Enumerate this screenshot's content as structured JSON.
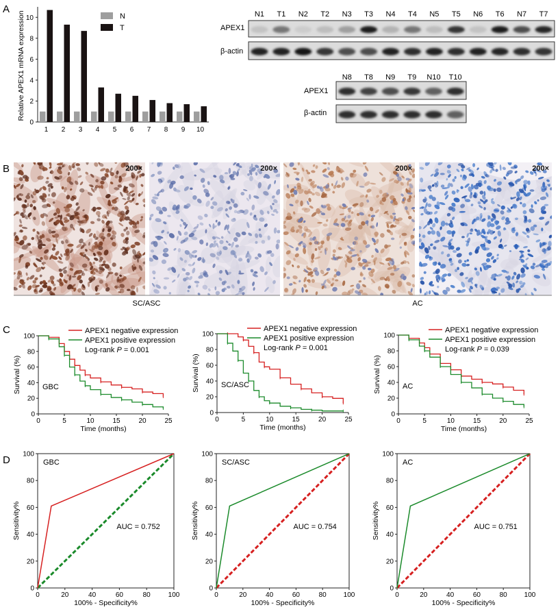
{
  "panel_labels": [
    "A",
    "B",
    "C",
    "D"
  ],
  "panel_a": {
    "chart_data": {
      "type": "bar",
      "categories": [
        "1",
        "2",
        "3",
        "4",
        "5",
        "6",
        "7",
        "8",
        "9",
        "10"
      ],
      "series": [
        {
          "name": "N",
          "values": [
            1,
            1,
            1,
            1,
            1,
            1,
            1,
            1,
            1,
            1
          ]
        },
        {
          "name": "T",
          "values": [
            10.7,
            9.3,
            8.7,
            3.3,
            2.7,
            2.5,
            2.1,
            1.8,
            1.7,
            1.5
          ]
        }
      ],
      "ylabel": "Relative APEX1 mRNA expression",
      "ylim": [
        0,
        11
      ],
      "yticks": [
        0,
        2,
        4,
        6,
        8,
        10
      ],
      "legend": "top-center",
      "colors": {
        "N": "#9e9e9e",
        "T": "#1a1313"
      }
    },
    "blot1": {
      "lanes": [
        "N1",
        "T1",
        "N2",
        "T2",
        "N3",
        "T3",
        "N4",
        "T4",
        "N5",
        "T5",
        "N6",
        "T6",
        "N7",
        "T7"
      ],
      "rows": [
        "APEX1",
        "β-actin"
      ],
      "apex1_intensity": [
        0.12,
        0.5,
        0.08,
        0.15,
        0.3,
        0.92,
        0.2,
        0.5,
        0.15,
        0.82,
        0.12,
        0.92,
        0.7,
        0.88
      ],
      "actin_intensity": [
        0.9,
        0.9,
        0.95,
        0.82,
        0.7,
        0.7,
        0.9,
        0.85,
        0.9,
        0.85,
        0.9,
        0.88,
        0.85,
        0.82
      ]
    },
    "blot2": {
      "lanes": [
        "N8",
        "T8",
        "N9",
        "T9",
        "N10",
        "T10"
      ],
      "rows": [
        "APEX1",
        "β-actin"
      ],
      "apex1_intensity": [
        0.85,
        0.75,
        0.7,
        0.8,
        0.6,
        0.85
      ],
      "actin_intensity": [
        0.85,
        0.85,
        0.85,
        0.85,
        0.85,
        0.6
      ]
    }
  },
  "panel_b": {
    "magnification": "200×",
    "captions": [
      "SC/ASC",
      "AC"
    ]
  },
  "panel_c": {
    "legend": [
      "APEX1 negative expression",
      "APEX1 positive expression"
    ],
    "colors": {
      "negative": "#d62020",
      "positive": "#1a8a2a"
    },
    "chart_data": [
      {
        "type": "line",
        "label": "GBC",
        "logrank_prefix": "Log-rank",
        "logrank_p_symbol": "P",
        "logrank_value": " = 0.001",
        "xlabel": "Time (months)",
        "ylabel": "Survival (%)",
        "xlim": [
          0,
          25
        ],
        "ylim": [
          0,
          100
        ],
        "xticks": [
          0,
          5,
          10,
          15,
          20,
          25
        ],
        "yticks": [
          0,
          20,
          40,
          60,
          80,
          100
        ],
        "series": [
          {
            "name": "APEX1 negative expression",
            "x": [
              0,
              2,
              4,
              5,
              6,
              7,
              8,
              9,
              10,
              12,
              14,
              16,
              18,
              20,
              22,
              24
            ],
            "y": [
              100,
              98,
              90,
              80,
              70,
              62,
              56,
              50,
              46,
              41,
              37,
              34,
              32,
              28,
              26,
              22
            ]
          },
          {
            "name": "APEX1 positive expression",
            "x": [
              0,
              2,
              4,
              5,
              6,
              7,
              8,
              9,
              10,
              12,
              14,
              16,
              18,
              20,
              22,
              24
            ],
            "y": [
              100,
              96,
              86,
              75,
              60,
              50,
              42,
              36,
              31,
              25,
              21,
              18,
              15,
              12,
              9,
              7
            ]
          }
        ]
      },
      {
        "type": "line",
        "label": "SC/ASC",
        "logrank_prefix": "Log-rank",
        "logrank_p_symbol": "P",
        "logrank_value": " = 0.001",
        "xlabel": "Time (months)",
        "ylabel": "Survival (%)",
        "xlim": [
          0,
          25
        ],
        "ylim": [
          0,
          100
        ],
        "xticks": [
          0,
          5,
          10,
          15,
          20,
          25
        ],
        "yticks": [
          0,
          20,
          40,
          60,
          80,
          100
        ],
        "series": [
          {
            "name": "APEX1 negative expression",
            "x": [
              0,
              2,
              4,
              5,
              6,
              7,
              8,
              9,
              10,
              12,
              14,
              16,
              18,
              20,
              22,
              24
            ],
            "y": [
              100,
              100,
              96,
              92,
              84,
              76,
              64,
              58,
              55,
              44,
              36,
              30,
              25,
              20,
              18,
              12
            ]
          },
          {
            "name": "APEX1 positive expression",
            "x": [
              0,
              2,
              3,
              4,
              5,
              6,
              7,
              8,
              9,
              10,
              12,
              14,
              16,
              18,
              20,
              24
            ],
            "y": [
              100,
              88,
              78,
              66,
              50,
              40,
              28,
              20,
              15,
              12,
              8,
              6,
              4,
              3,
              2,
              2
            ]
          }
        ]
      },
      {
        "type": "line",
        "label": "AC",
        "logrank_prefix": "Log-rank",
        "logrank_p_symbol": "P",
        "logrank_value": " = 0.039",
        "xlabel": "Time (months)",
        "ylabel": "Survival (%)",
        "xlim": [
          0,
          25
        ],
        "ylim": [
          0,
          100
        ],
        "xticks": [
          0,
          5,
          10,
          15,
          20,
          25
        ],
        "yticks": [
          0,
          20,
          40,
          60,
          80,
          100
        ],
        "series": [
          {
            "name": "APEX1 negative expression",
            "x": [
              0,
              2,
              4,
              5,
              6,
              8,
              10,
              12,
              14,
              16,
              18,
              20,
              22,
              24
            ],
            "y": [
              100,
              96,
              90,
              84,
              76,
              64,
              56,
              48,
              44,
              40,
              38,
              34,
              30,
              25
            ]
          },
          {
            "name": "APEX1 positive expression",
            "x": [
              0,
              2,
              4,
              5,
              6,
              8,
              10,
              12,
              14,
              16,
              18,
              20,
              22,
              24
            ],
            "y": [
              100,
              94,
              86,
              80,
              72,
              60,
              50,
              40,
              33,
              25,
              20,
              16,
              12,
              9
            ]
          }
        ]
      }
    ]
  },
  "panel_d": {
    "chart_data": [
      {
        "type": "line",
        "label": "GBC",
        "auc": "AUC = 0.752",
        "xlabel": "100% - Specificity%",
        "ylabel": "Sensitivity%",
        "xlim": [
          0,
          100
        ],
        "ylim": [
          0,
          100
        ],
        "xticks": [
          0,
          20,
          40,
          60,
          80,
          100
        ],
        "yticks": [
          0,
          20,
          40,
          60,
          80,
          100
        ],
        "roc": {
          "x": [
            0,
            10,
            100
          ],
          "y": [
            0,
            61,
            100
          ],
          "color": "#d62020"
        },
        "reference": {
          "x": [
            0,
            100
          ],
          "y": [
            0,
            100
          ],
          "color": "#1a8a2a"
        }
      },
      {
        "type": "line",
        "label": "SC/ASC",
        "auc": "AUC = 0.754",
        "xlabel": "100% - Specificity%",
        "ylabel": "Sensitivity%",
        "xlim": [
          0,
          100
        ],
        "ylim": [
          0,
          100
        ],
        "xticks": [
          0,
          20,
          40,
          60,
          80,
          100
        ],
        "yticks": [
          0,
          20,
          40,
          60,
          80,
          100
        ],
        "roc": {
          "x": [
            0,
            10,
            100
          ],
          "y": [
            0,
            61,
            100
          ],
          "color": "#1a8a2a"
        },
        "reference": {
          "x": [
            0,
            100
          ],
          "y": [
            0,
            100
          ],
          "color": "#d62020"
        }
      },
      {
        "type": "line",
        "label": "AC",
        "auc": "AUC = 0.751",
        "xlabel": "100% - Specificity%",
        "ylabel": "Sensitivity%",
        "xlim": [
          0,
          100
        ],
        "ylim": [
          0,
          100
        ],
        "xticks": [
          0,
          20,
          40,
          60,
          80,
          100
        ],
        "yticks": [
          0,
          20,
          40,
          60,
          80,
          100
        ],
        "roc": {
          "x": [
            0,
            10,
            100
          ],
          "y": [
            0,
            61,
            100
          ],
          "color": "#1a8a2a"
        },
        "reference": {
          "x": [
            0,
            100
          ],
          "y": [
            0,
            100
          ],
          "color": "#d62020"
        }
      }
    ]
  }
}
